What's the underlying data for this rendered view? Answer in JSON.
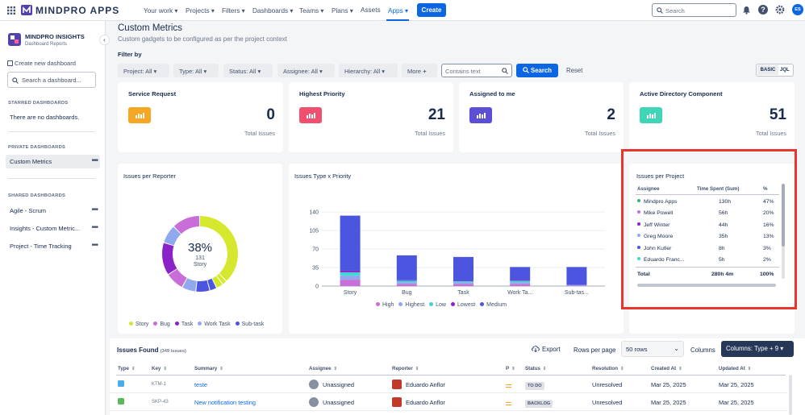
{
  "app": {
    "name": "MINDPRO APPS",
    "create_label": "Create",
    "search_placeholder": "Search",
    "user_initials": "ES"
  },
  "nav": [
    "Your work",
    "Projects",
    "Filters",
    "Dashboards",
    "Teams",
    "Plans",
    "Assets",
    "Apps"
  ],
  "sidebar": {
    "app_title": "MINDPRO INSIGHTS",
    "app_subtitle": "Dashboard Reports",
    "create_dashboard": "Create new dashboard",
    "search_placeholder": "Search a dashboard...",
    "starred_title": "STARRED DASHBOARDS",
    "starred_empty": "There are no dashboards.",
    "private_title": "PRIVATE DASHBOARDS",
    "private_items": [
      "Custom Metrics"
    ],
    "shared_title": "SHARED DASHBOARDS",
    "shared_items": [
      "Agile - Scrum",
      "Insights - Custom Metric...",
      "Project - Time Tracking"
    ]
  },
  "page": {
    "title": "Custom Metrics",
    "subtitle": "Custom gadgets to be configured as per the project context",
    "filter_by": "Filter by"
  },
  "filters": {
    "project": "Project: All",
    "type": "Type: All",
    "status": "Status: All",
    "assignee": "Assignee: All",
    "hierarchy": "Hierarchy: All",
    "more": "More",
    "contains_placeholder": "Contains text",
    "search": "Search",
    "reset": "Reset",
    "basic": "BASIC",
    "jql": "JQL"
  },
  "metrics": [
    {
      "title": "Service Request",
      "value": "0",
      "label": "Total Issues",
      "color": "#f5a623"
    },
    {
      "title": "Highest Priority",
      "value": "21",
      "label": "Total Issues",
      "color": "#f0506e"
    },
    {
      "title": "Assigned to me",
      "value": "2",
      "label": "Total Issues",
      "color": "#5b4fd6"
    },
    {
      "title": "Active Directory Component",
      "value": "51",
      "label": "Total Issues",
      "color": "#3fd6b7"
    }
  ],
  "chart_data": [
    {
      "type": "pie",
      "title": "Issues per Reporter",
      "center_percent": "38%",
      "center_count": "131",
      "center_label": "Story",
      "categories": [
        "Story",
        "Bug",
        "Task",
        "Work Task",
        "Sub-task"
      ],
      "colors": [
        "#d5e82d",
        "#c96ed8",
        "#8a22c8",
        "#8fa8ee",
        "#4b55e0"
      ],
      "segments": [
        {
          "category": "Story",
          "value": 38
        },
        {
          "category": "Story",
          "value": 2
        },
        {
          "category": "Story",
          "value": 3
        },
        {
          "category": "Sub-task",
          "value": 3
        },
        {
          "category": "Sub-task",
          "value": 6
        },
        {
          "category": "Work Task",
          "value": 6
        },
        {
          "category": "Bug",
          "value": 8
        },
        {
          "category": "Task",
          "value": 14
        },
        {
          "category": "Work Task",
          "value": 8
        },
        {
          "category": "Bug",
          "value": 12
        }
      ]
    },
    {
      "type": "bar",
      "title": "Issues Type x Priority",
      "categories": [
        "Story",
        "Bug",
        "Task",
        "Work Ta...",
        "Sub-tas..."
      ],
      "ylim": [
        0,
        140
      ],
      "yticks": [
        0,
        35,
        70,
        105,
        140
      ],
      "series": [
        {
          "name": "High",
          "color": "#c96ed8",
          "values": [
            12,
            4,
            4,
            4,
            1
          ]
        },
        {
          "name": "Highest",
          "color": "#8fa8ee",
          "values": [
            8,
            3,
            3,
            3,
            1
          ]
        },
        {
          "name": "Low",
          "color": "#3fd6d6",
          "values": [
            6,
            3,
            2,
            3,
            0
          ]
        },
        {
          "name": "Lowest",
          "color": "#8a22c8",
          "values": [
            3,
            1,
            1,
            2,
            0
          ]
        },
        {
          "name": "Medium",
          "color": "#4b55e0",
          "values": [
            104,
            47,
            45,
            24,
            34
          ]
        }
      ]
    }
  ],
  "issues_per_project": {
    "title": "Issues per Project",
    "headers": [
      "Assignee",
      "Time Spent (Sum)",
      "%"
    ],
    "rows": [
      {
        "name": "Mindpro Apps",
        "time": "130h",
        "pct": "47%",
        "color": "#36b37e"
      },
      {
        "name": "Mike Powell",
        "time": "56h",
        "pct": "20%",
        "color": "#c96ed8"
      },
      {
        "name": "Jeff Winter",
        "time": "44h",
        "pct": "16%",
        "color": "#8a22c8"
      },
      {
        "name": "Greg Moore",
        "time": "35h",
        "pct": "13%",
        "color": "#8fa8ee"
      },
      {
        "name": "John Kutler",
        "time": "8h",
        "pct": "3%",
        "color": "#4b55e0"
      },
      {
        "name": "Eduardo Franc...",
        "time": "5h",
        "pct": "2%",
        "color": "#3fd6d6"
      }
    ],
    "total": {
      "label": "Total",
      "time": "280h 4m",
      "pct": "100%"
    }
  },
  "issues": {
    "title": "Issues Found",
    "count": "(349 issues)",
    "export": "Export",
    "rows_per_page": "Rows per page",
    "rows_value": "50 rows",
    "columns": "Columns",
    "columns_button": "Columns: Type + 9",
    "headers": [
      "Type",
      "Key",
      "Summary",
      "Assignee",
      "Reporter",
      "P",
      "Status",
      "Resolution",
      "Created At",
      "Updated At"
    ],
    "rows": [
      {
        "key": "KTM-1",
        "summary": "teste",
        "assignee": "Unassigned",
        "reporter": "Eduardo Anflor",
        "status": "TO DO",
        "resolution": "Unresolved",
        "created": "Mar 25, 2025",
        "updated": "Mar 25, 2025",
        "type_color": "#4bade8"
      },
      {
        "key": "SKP-43",
        "summary": "New notification testing",
        "assignee": "Unassigned",
        "reporter": "Eduardo Anflor",
        "status": "BACKLOG",
        "resolution": "Unresolved",
        "created": "Mar 25, 2025",
        "updated": "Mar 25, 2025",
        "type_color": "#5cb85c"
      }
    ]
  }
}
